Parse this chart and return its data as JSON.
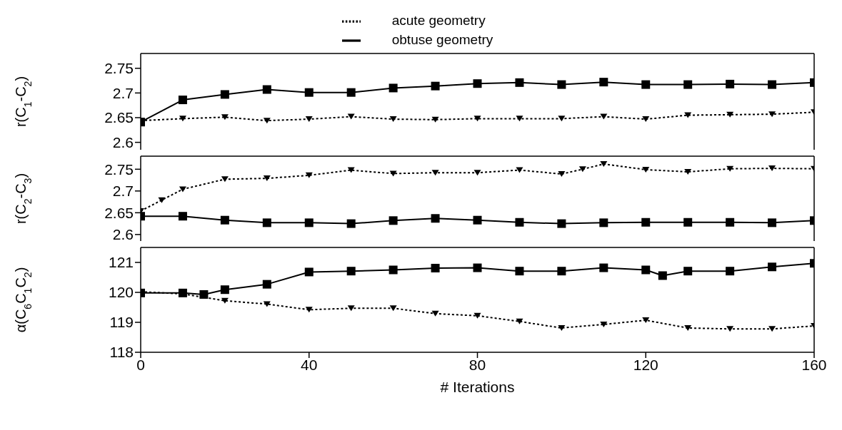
{
  "chart_data": [
    {
      "type": "line",
      "ylabel": "r(C$_{1}$-C$_{2}$)",
      "legend": "top",
      "xlim": [
        0,
        160
      ],
      "xticks": [
        0,
        40,
        80,
        120,
        160
      ],
      "ylim": [
        2.585,
        2.78
      ],
      "yticks": [
        2.6,
        2.65,
        2.7,
        2.75
      ],
      "tick_labels": "y",
      "series": [
        {
          "name": "acute geometry",
          "color": "#000000",
          "line_style": "dotted",
          "marker": "triangle",
          "x": [
            0,
            10,
            20,
            30,
            40,
            50,
            60,
            70,
            80,
            90,
            100,
            110,
            120,
            130,
            140,
            150,
            160
          ],
          "values": [
            2.644,
            2.648,
            2.651,
            2.644,
            2.647,
            2.652,
            2.647,
            2.646,
            2.648,
            2.648,
            2.648,
            2.652,
            2.647,
            2.655,
            2.656,
            2.657,
            2.661
          ]
        },
        {
          "name": "obtuse geometry",
          "color": "#000000",
          "line_style": "solid",
          "marker": "square",
          "x": [
            0,
            10,
            20,
            30,
            40,
            50,
            60,
            70,
            80,
            90,
            100,
            110,
            120,
            130,
            140,
            150,
            160
          ],
          "values": [
            2.641,
            2.686,
            2.697,
            2.707,
            2.701,
            2.701,
            2.71,
            2.714,
            2.719,
            2.721,
            2.717,
            2.722,
            2.717,
            2.717,
            2.718,
            2.717,
            2.721
          ]
        }
      ]
    },
    {
      "type": "line",
      "ylabel": "r(C$_{2}$-C$_{3}$)",
      "xlim": [
        0,
        160
      ],
      "xticks": [
        0,
        40,
        80,
        120,
        160
      ],
      "ylim": [
        2.585,
        2.78
      ],
      "yticks": [
        2.6,
        2.65,
        2.7,
        2.75
      ],
      "tick_labels": "y",
      "series": [
        {
          "color": "#000000",
          "line_style": "dotted",
          "marker": "triangle",
          "x": [
            0,
            5,
            10,
            20,
            30,
            40,
            50,
            60,
            70,
            80,
            90,
            100,
            105,
            110,
            120,
            130,
            140,
            150,
            160
          ],
          "values": [
            2.654,
            2.679,
            2.704,
            2.727,
            2.729,
            2.736,
            2.748,
            2.74,
            2.742,
            2.742,
            2.748,
            2.739,
            2.75,
            2.762,
            2.749,
            2.744,
            2.751,
            2.752,
            2.751
          ]
        },
        {
          "color": "#000000",
          "line_style": "solid",
          "marker": "square",
          "x": [
            0,
            10,
            20,
            30,
            40,
            50,
            60,
            70,
            80,
            90,
            100,
            110,
            120,
            130,
            140,
            150,
            160
          ],
          "values": [
            2.642,
            2.642,
            2.633,
            2.627,
            2.627,
            2.625,
            2.632,
            2.637,
            2.633,
            2.628,
            2.625,
            2.627,
            2.628,
            2.628,
            2.628,
            2.627,
            2.632
          ]
        }
      ]
    },
    {
      "type": "line",
      "ylabel": "α(C$_{6}$C$_{1}$C$_{2}$)",
      "xlabel": "# Iterations",
      "xlim": [
        0,
        160
      ],
      "xticks": [
        0,
        40,
        80,
        120,
        160
      ],
      "ylim": [
        118,
        121.5
      ],
      "yticks": [
        118,
        119,
        120,
        121
      ],
      "series": [
        {
          "color": "#000000",
          "line_style": "dotted",
          "marker": "triangle",
          "x": [
            0,
            10,
            20,
            30,
            40,
            50,
            60,
            70,
            80,
            90,
            100,
            110,
            120,
            130,
            140,
            150,
            160
          ],
          "values": [
            120.02,
            119.95,
            119.72,
            119.61,
            119.42,
            119.47,
            119.47,
            119.29,
            119.22,
            119.03,
            118.81,
            118.93,
            119.07,
            118.81,
            118.78,
            118.78,
            118.88
          ]
        },
        {
          "color": "#000000",
          "line_style": "solid",
          "marker": "square",
          "x": [
            0,
            10,
            15,
            20,
            30,
            40,
            50,
            60,
            70,
            80,
            90,
            100,
            110,
            120,
            124,
            130,
            140,
            150,
            160
          ],
          "values": [
            119.98,
            119.98,
            119.93,
            120.09,
            120.27,
            120.68,
            120.71,
            120.75,
            120.81,
            120.82,
            120.71,
            120.71,
            120.82,
            120.75,
            120.56,
            120.71,
            120.71,
            120.85,
            120.97
          ]
        }
      ]
    }
  ]
}
